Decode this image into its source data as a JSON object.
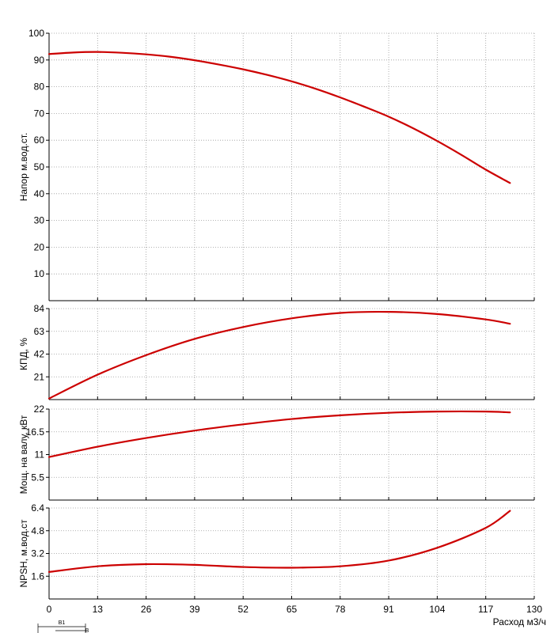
{
  "chart_data": {
    "type": "line",
    "x_ticks": [
      0,
      13,
      26,
      39,
      52,
      65,
      78,
      91,
      104,
      117,
      130
    ],
    "x_range": [
      0,
      130
    ],
    "xlabel": "Расход м3/ч",
    "line_color": "#cc0000",
    "grid": true,
    "panels": [
      {
        "id": "head",
        "ylabel": "Напор м.вод.ст.",
        "ylim": [
          0,
          100
        ],
        "y_ticks": [
          10,
          20,
          30,
          40,
          50,
          60,
          70,
          80,
          90,
          100
        ],
        "y_tick_labels": [
          "10",
          "20",
          "30",
          "40",
          "50",
          "60",
          "70",
          "80",
          "90",
          "100"
        ],
        "series": [
          {
            "x": [
              0,
              6.5,
              13,
              19.5,
              26,
              32.5,
              39,
              45.5,
              52,
              58.5,
              65,
              71.5,
              78,
              84.5,
              91,
              97.5,
              104,
              110.5,
              117,
              123.5
            ],
            "y": [
              92.2,
              92.8,
              93.0,
              92.7,
              92.1,
              91.2,
              89.9,
              88.3,
              86.5,
              84.4,
              82.0,
              79.2,
              76.0,
              72.5,
              68.8,
              64.5,
              59.7,
              54.5,
              49.0,
              44.0
            ]
          }
        ]
      },
      {
        "id": "efficiency",
        "ylabel": "КПД, %",
        "ylim": [
          0,
          84
        ],
        "y_ticks": [
          21,
          42,
          63,
          84
        ],
        "y_tick_labels": [
          "21",
          "42",
          "63",
          "84"
        ],
        "series": [
          {
            "x": [
              0,
              13,
              26,
              39,
              52,
              65,
              78,
              91,
              104,
              117,
              123.5
            ],
            "y": [
              1,
              23,
              41,
              56,
              67,
              75,
              80,
              81,
              79,
              74,
              70
            ]
          }
        ]
      },
      {
        "id": "power",
        "ylabel": "Мощ. на валу, кВт",
        "ylim": [
          0,
          22
        ],
        "y_ticks": [
          5.5,
          11,
          16.5,
          22
        ],
        "y_tick_labels": [
          "5.5",
          "11",
          "16.5",
          "22"
        ],
        "series": [
          {
            "x": [
              0,
              13,
              26,
              39,
              52,
              65,
              78,
              91,
              104,
              117,
              123.5
            ],
            "y": [
              10.4,
              12.9,
              15.0,
              16.8,
              18.3,
              19.6,
              20.5,
              21.1,
              21.4,
              21.4,
              21.2
            ]
          }
        ]
      },
      {
        "id": "npsh",
        "ylabel": "NPSH, м.вод.ст",
        "ylim": [
          0,
          6.4
        ],
        "y_ticks": [
          1.6,
          3.2,
          4.8,
          6.4
        ],
        "y_tick_labels": [
          "1.6",
          "3.2",
          "4.8",
          "6.4"
        ],
        "series": [
          {
            "x": [
              0,
              13,
              26,
              39,
              52,
              65,
              78,
              91,
              104,
              117,
              123.5
            ],
            "y": [
              1.9,
              2.3,
              2.45,
              2.4,
              2.25,
              2.2,
              2.3,
              2.7,
              3.6,
              5.0,
              6.2
            ]
          }
        ]
      }
    ]
  },
  "footer": {
    "label_b1": "B1",
    "label_b": "B"
  }
}
